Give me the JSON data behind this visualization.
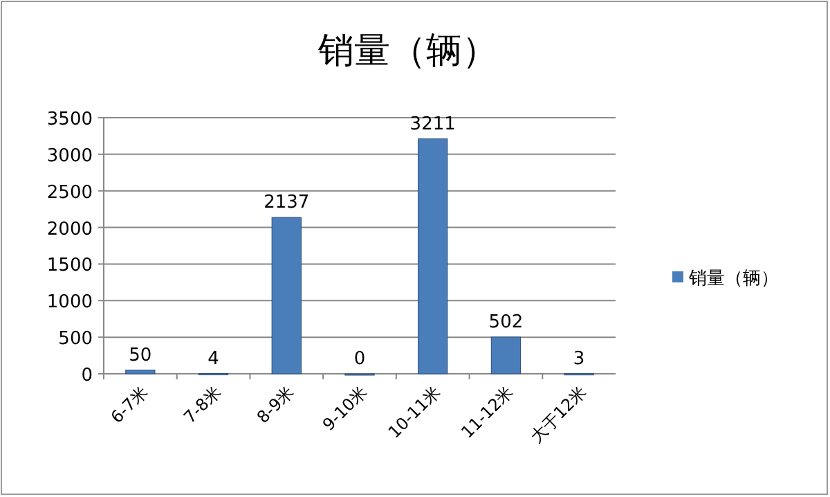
{
  "chart_data": {
    "type": "bar",
    "title": "销量（辆）",
    "categories": [
      "6-7米",
      "7-8米",
      "8-9米",
      "9-10米",
      "10-11米",
      "11-12米",
      "大于12米"
    ],
    "series": [
      {
        "name": "销量（辆）",
        "color": "#4a7ebb",
        "values": [
          50,
          4,
          2137,
          0,
          3211,
          502,
          3
        ]
      }
    ],
    "ylim": [
      0,
      3500
    ],
    "yticks": [
      0,
      500,
      1000,
      1500,
      2000,
      2500,
      3000,
      3500
    ],
    "grid": "y",
    "legend": "right",
    "data_labels": true
  }
}
